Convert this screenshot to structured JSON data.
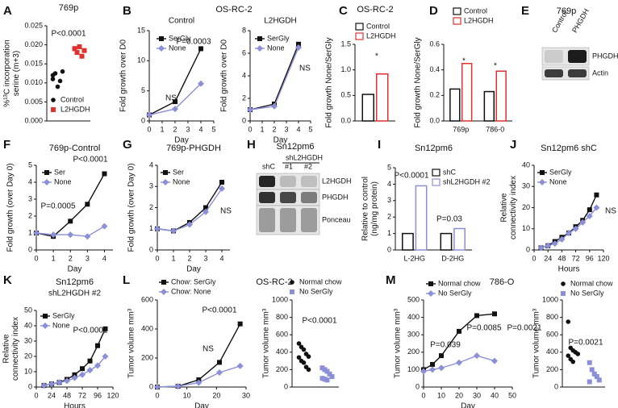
{
  "chart_data": [
    {
      "type": "dot",
      "panel": "A",
      "title": "769p",
      "ylabel": "%¹³C incorporation\nserine (m+3)",
      "series": [
        {
          "name": "Control",
          "color": "#111111",
          "values": [
            0.011,
            0.0125,
            0.009,
            0.0105,
            0.013,
            0.012
          ]
        },
        {
          "name": "L2HGDH",
          "color": "#e0312f",
          "values": [
            0.019,
            0.018,
            0.0195,
            0.017,
            0.0185,
            0.019
          ]
        }
      ],
      "ylim": [
        0,
        0.025
      ],
      "yticks": [
        {
          "value": 0,
          "label": "0.000"
        },
        0.005,
        {
          "value": 0.01,
          "label": "0.010"
        },
        0.015,
        {
          "value": 0.02,
          "label": "0.020"
        },
        0.025
      ],
      "annotations": [
        "P<0.0001"
      ]
    },
    {
      "type": "line",
      "panel": "B",
      "title": "OS-RC-2",
      "subtitle": "Control",
      "ylabel": "Fold growth over D0",
      "xlabel": "Day",
      "x": [
        0,
        2,
        4
      ],
      "series": [
        {
          "name": "SerGly",
          "color": "#111111",
          "values": [
            1,
            3.2,
            12
          ]
        },
        {
          "name": "None",
          "color": "#8a8fd8",
          "values": [
            1,
            2,
            6.2
          ]
        }
      ],
      "xlim": [
        0,
        5
      ],
      "xticks": [
        0,
        1,
        2,
        3,
        4,
        5
      ],
      "ylim": [
        0,
        15
      ],
      "yticks": [
        0,
        5,
        10,
        15
      ],
      "annotations": [
        "P=0.0003",
        "NS"
      ]
    },
    {
      "type": "line",
      "subtitle": "L2HGDH",
      "ylabel": "Fold growth over D0",
      "xlabel": "Day",
      "x": [
        0,
        2,
        4
      ],
      "series": [
        {
          "name": "SerGly",
          "color": "#111111",
          "values": [
            1,
            1.5,
            6.8
          ]
        },
        {
          "name": "None",
          "color": "#8a8fd8",
          "values": [
            1,
            1.3,
            6.5
          ]
        }
      ],
      "xlim": [
        0,
        5
      ],
      "xticks": [
        0,
        1,
        2,
        3,
        4,
        5
      ],
      "ylim": [
        0,
        8
      ],
      "yticks": [
        0,
        2,
        4,
        6,
        8
      ],
      "annotations": [
        "NS"
      ]
    },
    {
      "type": "bar",
      "panel": "C",
      "title": "OS-RC-2",
      "ylabel": "Fold growth None/SerGly",
      "categories": [
        null
      ],
      "series": [
        {
          "name": "Control",
          "color": "#111111",
          "values": [
            0.52
          ]
        },
        {
          "name": "L2HGDH",
          "color": "#e0312f",
          "values": [
            0.92
          ]
        }
      ],
      "ylim": [
        0,
        1.5
      ],
      "yticks": [
        {
          "value": 0,
          "label": "0.0"
        },
        0.5,
        {
          "value": 1,
          "label": "1.0"
        },
        1.5
      ],
      "annotations": [
        "*"
      ]
    },
    {
      "type": "bar",
      "panel": "D",
      "ylabel": "Fold growth None/SerGly",
      "categories": [
        "769p",
        "786-0"
      ],
      "series": [
        {
          "name": "Control",
          "color": "#111111",
          "values": [
            0.25,
            0.23
          ]
        },
        {
          "name": "L2HGDH",
          "color": "#e0312f",
          "values": [
            0.45,
            0.39
          ]
        }
      ],
      "ylim": [
        0,
        0.6
      ],
      "yticks": [
        {
          "value": 0,
          "label": "0.0"
        },
        0.2,
        0.4,
        0.6
      ],
      "annotations": [
        "*",
        "*"
      ]
    },
    {
      "type": "line",
      "panel": "F",
      "title": "769p-Control",
      "ylabel": "Fold growth (over Day 0)",
      "xlabel": "Day",
      "x": [
        0,
        1,
        2,
        3,
        4
      ],
      "series": [
        {
          "name": "Ser",
          "color": "#111111",
          "values": [
            1,
            0.8,
            1.7,
            2.7,
            4.5
          ]
        },
        {
          "name": "None",
          "color": "#8a8fd8",
          "values": [
            1,
            0.9,
            0.9,
            0.8,
            1.4
          ]
        }
      ],
      "xlim": [
        0,
        4.5
      ],
      "xticks": [
        0,
        1,
        2,
        3,
        4
      ],
      "ylim": [
        0,
        5
      ],
      "yticks": [
        0,
        1,
        2,
        3,
        4,
        5
      ],
      "annotations": [
        "P<0.0001",
        "P=0.0005"
      ]
    },
    {
      "type": "line",
      "panel": "G",
      "title": "769p-PHGDH",
      "ylabel": "Fold growth (over Day 0)",
      "xlabel": "Day",
      "x": [
        0,
        1,
        2,
        3,
        4
      ],
      "series": [
        {
          "name": "Ser",
          "color": "#111111",
          "values": [
            1,
            0.9,
            1.3,
            2.0,
            3.2
          ]
        },
        {
          "name": "None",
          "color": "#8a8fd8",
          "values": [
            1,
            0.9,
            1.2,
            1.8,
            2.9
          ]
        }
      ],
      "xlim": [
        0,
        4.5
      ],
      "xticks": [
        0,
        1,
        2,
        3,
        4
      ],
      "ylim": [
        0,
        4
      ],
      "yticks": [
        0,
        1,
        2,
        3,
        4
      ],
      "annotations": [
        "NS"
      ]
    },
    {
      "type": "bar",
      "panel": "I",
      "title": "Sn12pm6",
      "ylabel": "Relative to control\n(ng/mg protein)",
      "categories": [
        "L-2HG",
        "D-2HG"
      ],
      "series": [
        {
          "name": "shC",
          "color": "#111111",
          "values": [
            1,
            1
          ]
        },
        {
          "name": "shL2HGDH #2",
          "color": "#8a8fd8",
          "values": [
            3.9,
            1.3
          ]
        }
      ],
      "ylim": [
        0,
        5
      ],
      "yticks": [
        0,
        1,
        2,
        3,
        4,
        5
      ],
      "annotations": [
        "P<0.0001",
        "P=0.03"
      ]
    },
    {
      "type": "line",
      "panel": "J",
      "title": "Sn12pm6 shC",
      "ylabel": "Relative\nconnectivity index",
      "xlabel": "Hours",
      "x": [
        12,
        24,
        36,
        48,
        60,
        72,
        84,
        96,
        108
      ],
      "series": [
        {
          "name": "SerGly",
          "color": "#111111",
          "values": [
            1,
            2,
            4,
            6,
            8,
            11,
            14,
            19,
            26
          ]
        },
        {
          "name": "None",
          "color": "#8a8fd8",
          "values": [
            1,
            2,
            3,
            5,
            8,
            10,
            13,
            16,
            20
          ]
        }
      ],
      "xlim": [
        0,
        120
      ],
      "xticks": [
        0,
        24,
        48,
        72,
        96,
        120
      ],
      "ylim": [
        0,
        40
      ],
      "yticks": [
        0,
        10,
        20,
        30,
        40
      ],
      "annotations": [
        "NS"
      ]
    },
    {
      "type": "line",
      "panel": "K",
      "title": "Sn12pm6",
      "subtitle": "shL2HGDH #2",
      "ylabel": "Relative\nconnectivity index",
      "xlabel": "Hours",
      "x": [
        12,
        24,
        36,
        48,
        60,
        72,
        84,
        96,
        108
      ],
      "series": [
        {
          "name": "SerGly",
          "color": "#111111",
          "values": [
            1,
            2,
            3,
            5,
            8,
            12,
            17,
            27,
            38
          ]
        },
        {
          "name": "None",
          "color": "#8a8fd8",
          "values": [
            1,
            2,
            3,
            4,
            6,
            8,
            11,
            14,
            20
          ]
        }
      ],
      "xlim": [
        0,
        120
      ],
      "xticks": [
        0,
        24,
        48,
        72,
        96,
        120
      ],
      "ylim": [
        0,
        50
      ],
      "yticks": [
        0,
        10,
        20,
        30,
        40,
        50
      ],
      "annotations": [
        "P<0.0001"
      ]
    },
    {
      "type": "line",
      "panel": "L",
      "title": "OS-RC-2",
      "ylabel": "Tumor volume mm³",
      "xlabel": "Day",
      "x": [
        0,
        7,
        14,
        21,
        28
      ],
      "series": [
        {
          "name": "Chow: SerGly",
          "color": "#111111",
          "values": [
            0,
            5,
            50,
            170,
            435
          ]
        },
        {
          "name": "Chow: None",
          "color": "#8a8fd8",
          "values": [
            0,
            5,
            30,
            100,
            145
          ]
        }
      ],
      "xlim": [
        0,
        30
      ],
      "xticks": [
        0,
        10,
        20,
        30
      ],
      "ylim": [
        0,
        600
      ],
      "yticks": [
        0,
        200,
        400,
        600
      ],
      "annotations": [
        "P<0.0001",
        "NS"
      ]
    },
    {
      "type": "dot",
      "ylabel": "Tumor volume mm³",
      "series": [
        {
          "name": "Normal chow",
          "color": "#111111",
          "values": [
            500,
            460,
            430,
            380,
            350,
            340,
            300,
            280,
            230,
            200
          ]
        },
        {
          "name": "No SerGly",
          "color": "#8a8fd8",
          "values": [
            220,
            200,
            180,
            150,
            120,
            100,
            90,
            80
          ]
        }
      ],
      "ylim": [
        0,
        1000
      ],
      "yticks": [
        0,
        200,
        400,
        600,
        800,
        1000
      ],
      "annotations": [
        "P<0.0001"
      ]
    },
    {
      "type": "line",
      "panel": "M",
      "title": "786-O",
      "ylabel": "Tumor volume mm³",
      "xlabel": "Day",
      "x": [
        0,
        5,
        10,
        20,
        30,
        40
      ],
      "series": [
        {
          "name": "Normal chow",
          "color": "#111111",
          "values": [
            100,
            130,
            180,
            320,
            410,
            420
          ]
        },
        {
          "name": "No SerGly",
          "color": "#8a8fd8",
          "values": [
            90,
            100,
            110,
            140,
            180,
            150
          ]
        }
      ],
      "xlim": [
        0,
        50
      ],
      "xticks": [
        0,
        10,
        20,
        30,
        40,
        50
      ],
      "ylim": [
        0,
        500
      ],
      "yticks": [
        0,
        100,
        200,
        300,
        400,
        500
      ],
      "annotations": [
        "P=0.039",
        "P=0.0085",
        "P=0.0021"
      ]
    },
    {
      "type": "dot",
      "ylabel": "Tumor volume mm³",
      "series": [
        {
          "name": "Normal chow",
          "color": "#111111",
          "values": [
            750,
            450,
            420,
            400,
            380,
            360,
            320,
            290
          ]
        },
        {
          "name": "No SerGly",
          "color": "#8a8fd8",
          "values": [
            280,
            200,
            150,
            120,
            80,
            60
          ]
        }
      ],
      "ylim": [
        0,
        1000
      ],
      "yticks": [
        0,
        200,
        400,
        600,
        800,
        1000
      ],
      "annotations": [
        "P=0.0021"
      ]
    }
  ],
  "blots": [
    {
      "panel": "E",
      "title": "769p",
      "lanes": [
        "Control",
        "PHGDH"
      ],
      "bands": [
        "PHGDH",
        "Actin"
      ]
    },
    {
      "panel": "H",
      "title": "Sn12pm6",
      "group": "shL2HGDH",
      "lanes": [
        "shC",
        "#1",
        "#2"
      ],
      "bands": [
        "L2HGDH",
        "PHGDH",
        "Ponceau"
      ]
    }
  ]
}
